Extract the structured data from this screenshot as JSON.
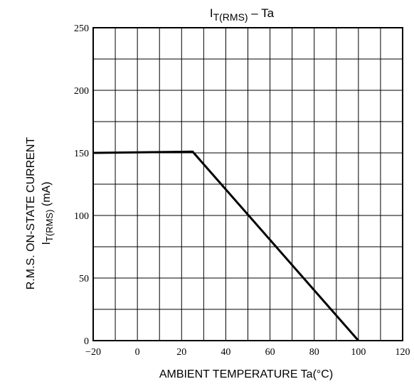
{
  "chart_data": {
    "type": "line",
    "title": {
      "main": "I",
      "sub": "T(RMS)",
      "suffix": " – Ta"
    },
    "xlabel": "AMBIENT TEMPERATURE Ta(°C)",
    "ylabel": {
      "line1": "R.M.S. ON-STATE CURRENT",
      "line2_main": "I",
      "line2_sub": "T(RMS)",
      "line2_suffix": " (mA)"
    },
    "xlim": [
      -20,
      120
    ],
    "ylim": [
      0,
      250
    ],
    "x_ticks": [
      -20,
      0,
      20,
      40,
      60,
      80,
      100,
      120
    ],
    "x_tick_labels": [
      "−20",
      "0",
      "20",
      "40",
      "60",
      "80",
      "100",
      "120"
    ],
    "y_ticks": [
      0,
      50,
      100,
      150,
      200,
      250
    ],
    "y_tick_labels": [
      "0",
      "50",
      "100",
      "150",
      "200",
      "250"
    ],
    "grid": true,
    "series": [
      {
        "x": [
          -20,
          25,
          100
        ],
        "y": [
          150,
          151,
          0
        ]
      }
    ]
  }
}
